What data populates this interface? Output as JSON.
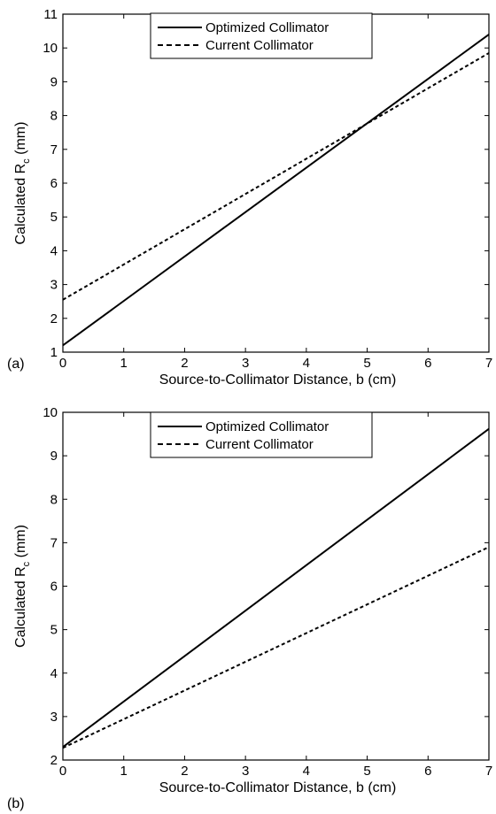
{
  "chart_data": [
    {
      "type": "line",
      "panel_label": "(a)",
      "xlabel": "Source-to-Collimator Distance, b (cm)",
      "ylabel_main": "Calculated R",
      "ylabel_sub": "c",
      "ylabel_unit": " (mm)",
      "xlim": [
        0,
        7
      ],
      "ylim": [
        1,
        11
      ],
      "xticks": [
        "0",
        "1",
        "2",
        "3",
        "4",
        "5",
        "6",
        "7"
      ],
      "yticks": [
        "1",
        "2",
        "3",
        "4",
        "5",
        "6",
        "7",
        "8",
        "9",
        "10",
        "11"
      ],
      "legend_position": "top-center",
      "series": [
        {
          "name": "Optimized Collimator",
          "style": "solid",
          "x": [
            0,
            7
          ],
          "y": [
            1.2,
            10.4
          ]
        },
        {
          "name": "Current Collimator",
          "style": "dashed",
          "x": [
            0,
            7
          ],
          "y": [
            2.55,
            9.85
          ]
        }
      ]
    },
    {
      "type": "line",
      "panel_label": "(b)",
      "xlabel": "Source-to-Collimator Distance, b (cm)",
      "ylabel_main": "Calculated R",
      "ylabel_sub": "c",
      "ylabel_unit": " (mm)",
      "xlim": [
        0,
        7
      ],
      "ylim": [
        2,
        10
      ],
      "xticks": [
        "0",
        "1",
        "2",
        "3",
        "4",
        "5",
        "6",
        "7"
      ],
      "yticks": [
        "2",
        "3",
        "4",
        "5",
        "6",
        "7",
        "8",
        "9",
        "10"
      ],
      "legend_position": "top-center",
      "series": [
        {
          "name": "Optimized Collimator",
          "style": "solid",
          "x": [
            0,
            7
          ],
          "y": [
            2.3,
            9.62
          ]
        },
        {
          "name": "Current Collimator",
          "style": "dashed",
          "x": [
            0,
            7
          ],
          "y": [
            2.28,
            6.9
          ]
        }
      ]
    }
  ]
}
